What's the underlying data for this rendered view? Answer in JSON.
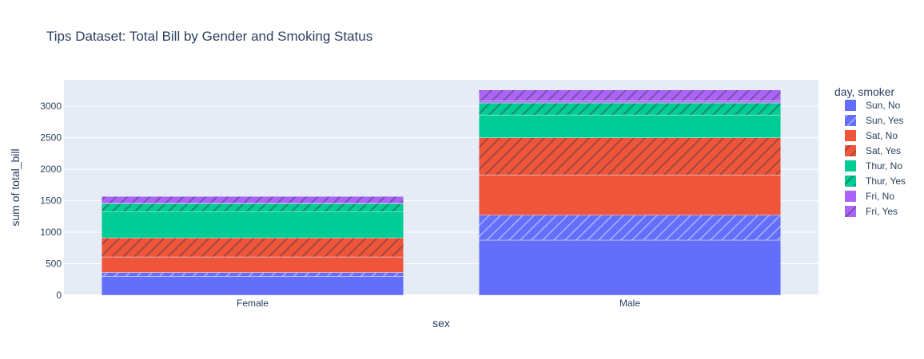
{
  "chart_data": {
    "type": "bar",
    "barmode": "stack",
    "title": "Tips Dataset: Total Bill by Gender and Smoking Status",
    "xlabel": "sex",
    "ylabel": "sum of total_bill",
    "categories": [
      "Female",
      "Male"
    ],
    "ylim": [
      0,
      3420
    ],
    "yticks": [
      0,
      500,
      1000,
      1500,
      2000,
      2500,
      3000
    ],
    "ytick_labels": [
      "0",
      "500",
      "1000",
      "1500",
      "2000",
      "2500",
      "3000"
    ],
    "grid": true,
    "legend_title": "day, smoker",
    "legend_position": "right",
    "series": [
      {
        "name": "Sun, No",
        "color": "#636efa",
        "pattern": "none",
        "values": [
          298,
          874
        ]
      },
      {
        "name": "Sun, Yes",
        "color": "#636efa",
        "pattern": "hatch",
        "values": [
          62,
          396
        ]
      },
      {
        "name": "Sat, No",
        "color": "#ef553b",
        "pattern": "none",
        "values": [
          247,
          638
        ]
      },
      {
        "name": "Sat, Yes",
        "color": "#ef553b",
        "pattern": "hatch",
        "values": [
          304,
          592
        ]
      },
      {
        "name": "Thur, No",
        "color": "#00cc96",
        "pattern": "none",
        "values": [
          416,
          361
        ]
      },
      {
        "name": "Thur, Yes",
        "color": "#00cc96",
        "pattern": "hatch",
        "values": [
          128,
          192
        ]
      },
      {
        "name": "Fri, No",
        "color": "#ab63fa",
        "pattern": "none",
        "values": [
          3,
          31
        ]
      },
      {
        "name": "Fri, Yes",
        "color": "#ab63fa",
        "pattern": "hatch",
        "values": [
          110,
          175
        ]
      }
    ]
  }
}
